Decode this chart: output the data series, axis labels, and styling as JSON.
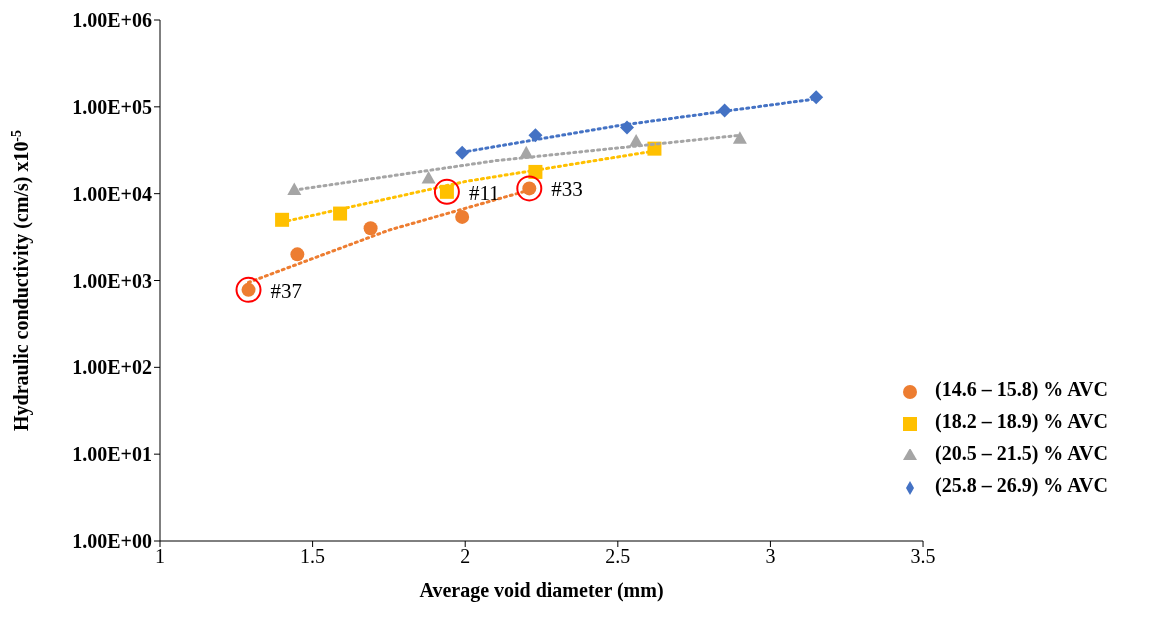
{
  "chart_data": {
    "type": "scatter",
    "xlabel": "Average void diameter (mm)",
    "ylabel": "Hydraulic  conductivity  (cm/s)  x10$^{-5}$",
    "log": "y",
    "grid": false,
    "legend": "bottom right",
    "xlim": [
      1,
      3.5
    ],
    "xticks": [
      1,
      1.5,
      2,
      2.5,
      3,
      3.5
    ],
    "ylim": [
      1,
      1000000
    ],
    "yticks": [
      {
        "value": 1,
        "label": "1.00E+00"
      },
      {
        "value": 10,
        "label": "1.00E+01"
      },
      {
        "value": 100,
        "label": "1.00E+02"
      },
      {
        "value": 1000,
        "label": "1.00E+03"
      },
      {
        "value": 10000,
        "label": "1.00E+04"
      },
      {
        "value": 100000,
        "label": "1.00E+05"
      },
      {
        "value": 1000000,
        "label": "1.00E+06"
      }
    ],
    "series": [
      {
        "name": "(14.6 – 15.8) % AVC",
        "color": "#ed7d31",
        "marker": "circle",
        "x": [
          1.29,
          1.45,
          1.69,
          1.99,
          2.21
        ],
        "values": [
          780,
          2000,
          4000,
          5400,
          11500
        ]
      },
      {
        "name": "(18.2 – 18.9) % AVC",
        "color": "#ffc000",
        "marker": "square",
        "x": [
          1.4,
          1.59,
          1.94,
          2.23,
          2.62
        ],
        "values": [
          5000,
          5900,
          10500,
          17800,
          33000
        ]
      },
      {
        "name": "(20.5 – 21.5) % AVC",
        "color": "#a5a5a5",
        "marker": "triangle",
        "x": [
          1.44,
          1.88,
          2.2,
          2.56,
          2.9
        ],
        "values": [
          11200,
          15200,
          29500,
          40500,
          43500
        ]
      },
      {
        "name": "(25.8 – 26.9) % AVC",
        "color": "#4472c4",
        "marker": "diamond",
        "x": [
          1.99,
          2.23,
          2.53,
          2.85,
          3.15
        ],
        "values": [
          29500,
          47000,
          58000,
          91000,
          129000
        ]
      },
      {
        "type": "line",
        "color": "#ed7d31",
        "marker": "none",
        "line_style": "dotted",
        "x": [
          1.29,
          1.75,
          2.21
        ],
        "values": [
          950,
          3800,
          11000
        ]
      },
      {
        "type": "line",
        "color": "#ffc000",
        "marker": "none",
        "line_style": "dotted",
        "x": [
          1.4,
          2.0,
          2.62
        ],
        "values": [
          4700,
          13800,
          31000
        ]
      },
      {
        "type": "line",
        "color": "#a5a5a5",
        "marker": "none",
        "line_style": "dotted",
        "x": [
          1.44,
          2.1,
          2.9
        ],
        "values": [
          11000,
          24000,
          47000
        ]
      },
      {
        "type": "line",
        "color": "#4472c4",
        "marker": "none",
        "line_style": "dotted",
        "x": [
          1.99,
          2.5,
          3.16
        ],
        "values": [
          30000,
          60700,
          125000
        ]
      }
    ],
    "annotations": [
      {
        "text": "#37",
        "x": 1.29,
        "y": 780
      },
      {
        "text": "#11",
        "x": 1.94,
        "y": 10500
      },
      {
        "text": "#33",
        "x": 2.21,
        "y": 11500
      }
    ]
  }
}
